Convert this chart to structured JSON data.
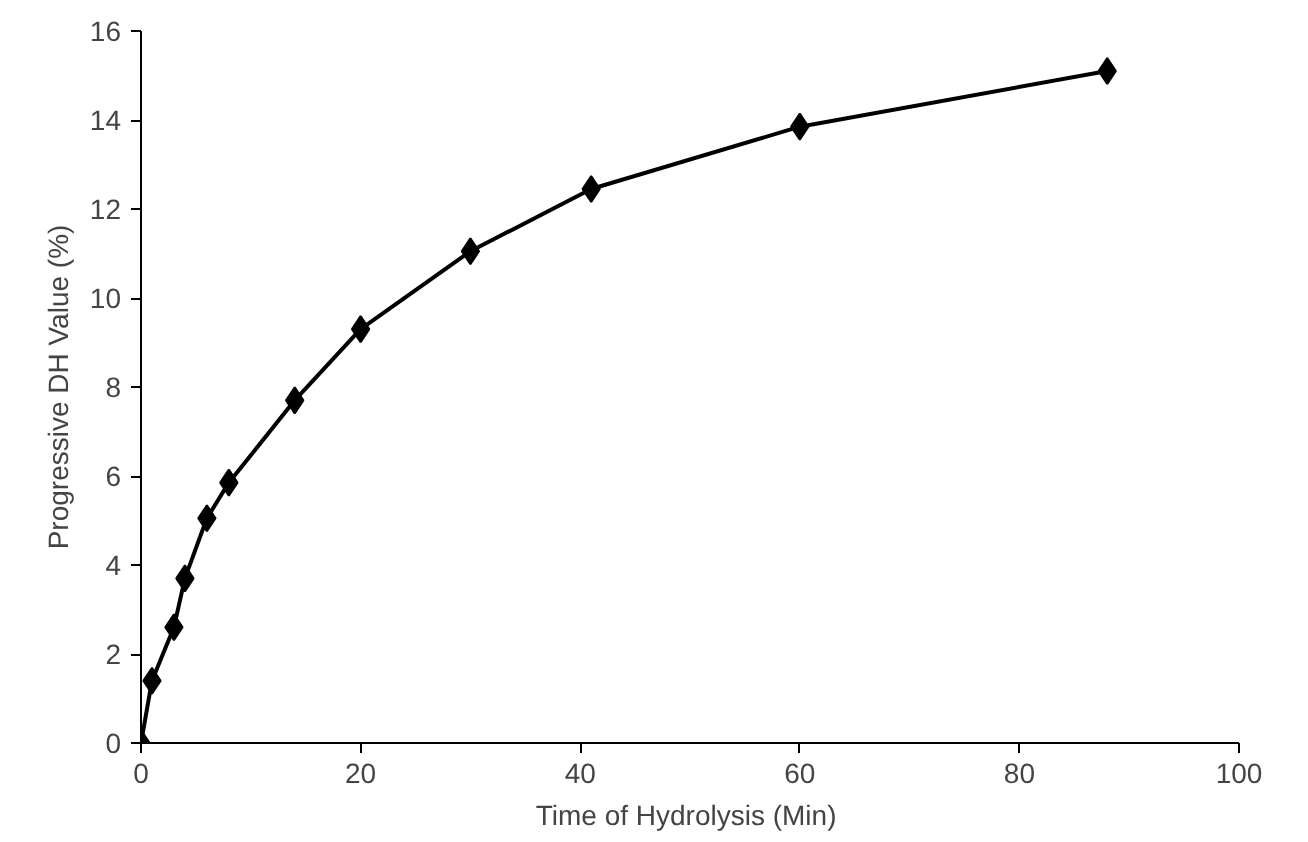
{
  "chart_data": {
    "type": "line",
    "xlabel": "Time  of Hydrolysis (Min)",
    "ylabel": "Progressive DH Value (%)",
    "x": [
      0,
      1,
      3,
      4,
      6,
      8,
      14,
      20,
      30,
      41,
      60,
      88
    ],
    "series": [
      {
        "color": "#000000",
        "values": [
          0,
          1.4,
          2.6,
          3.7,
          5.05,
          5.85,
          7.7,
          9.3,
          11.05,
          12.45,
          13.85,
          15.1
        ]
      }
    ],
    "xlim": [
      0,
      100
    ],
    "xticks": [
      0,
      20,
      40,
      60,
      80,
      100
    ],
    "ylim": [
      0,
      16
    ],
    "yticks": [
      0,
      2,
      4,
      6,
      8,
      10,
      12,
      14,
      16
    ],
    "grid": false,
    "marker": "diamond",
    "line_style": "solid"
  }
}
